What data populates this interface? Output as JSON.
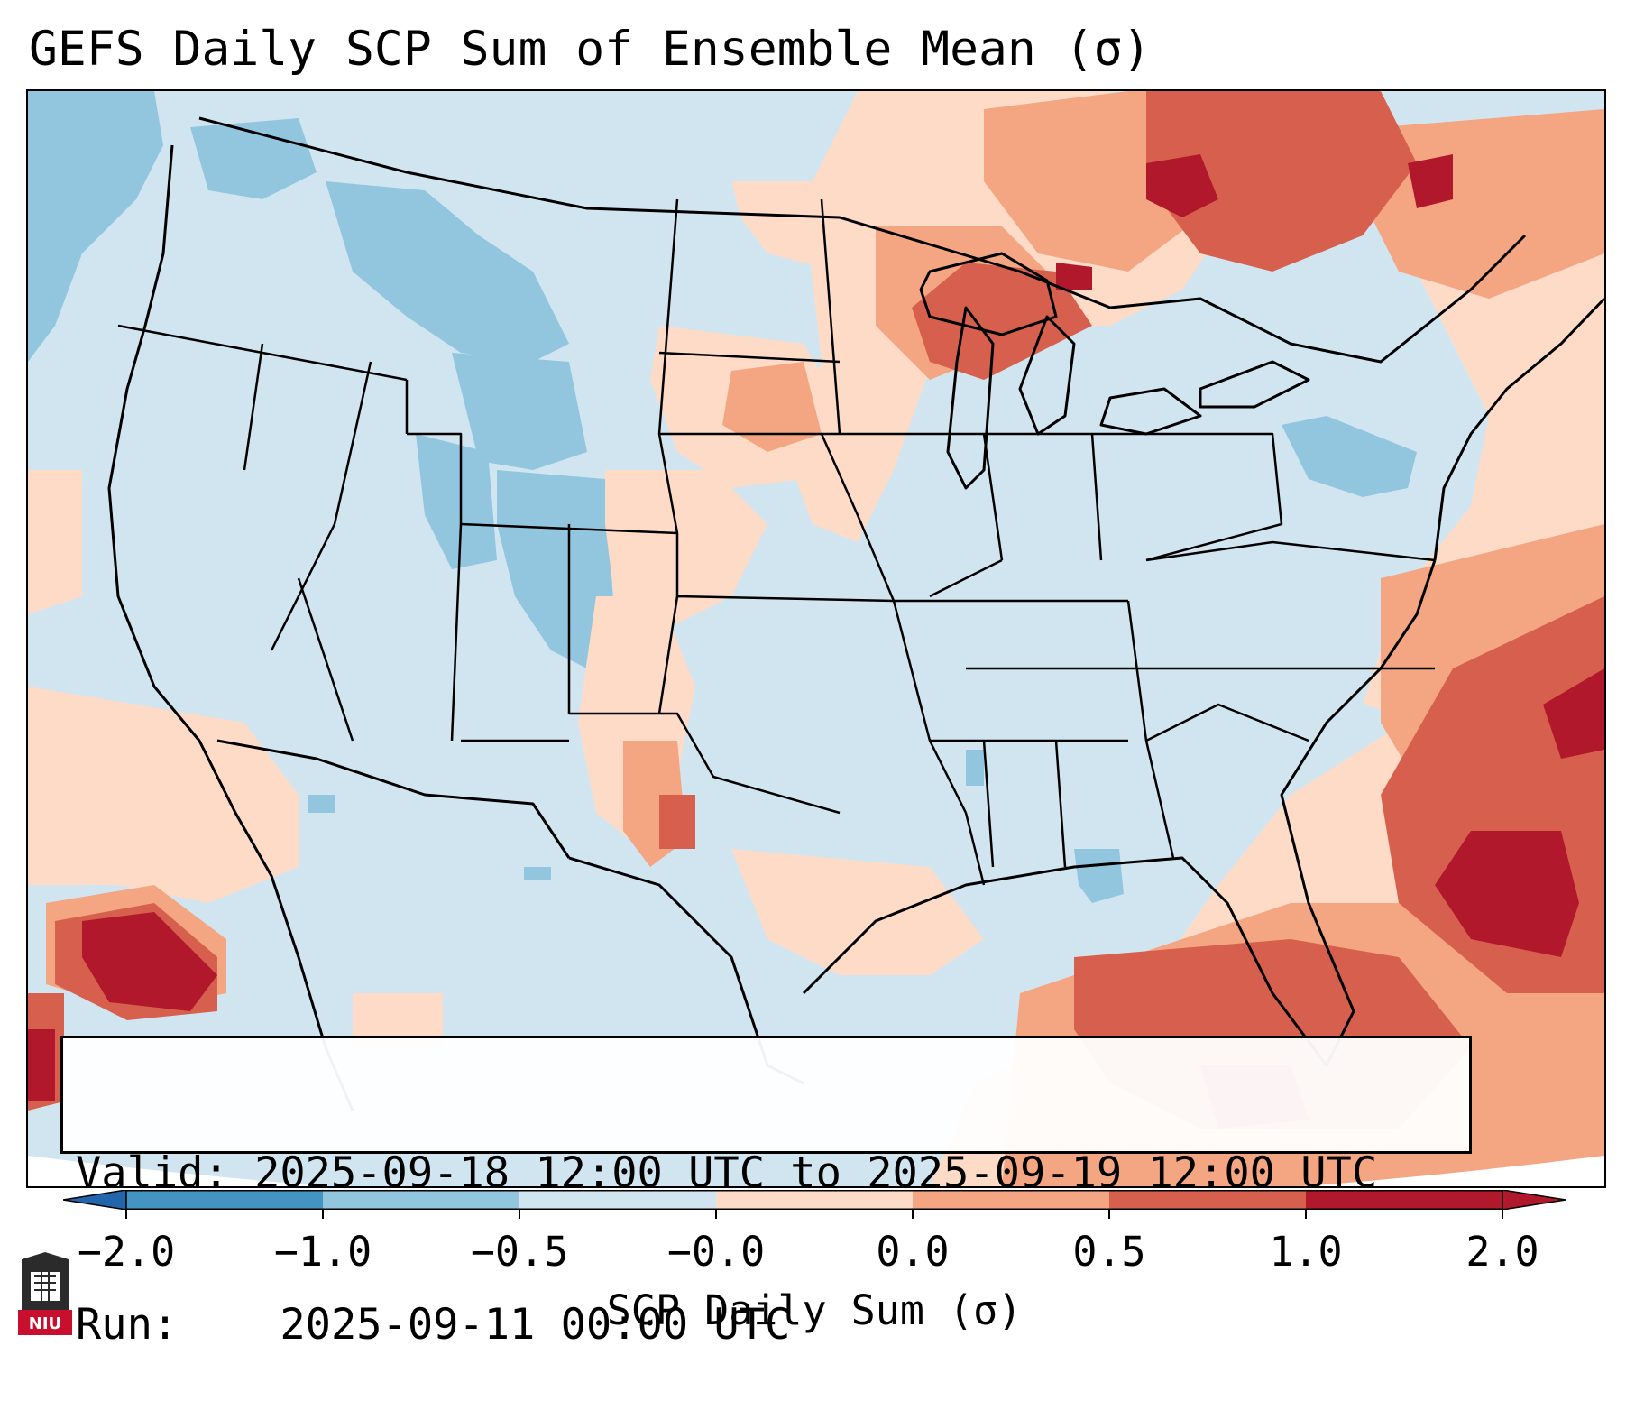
{
  "title": "GEFS Daily SCP Sum of Ensemble Mean (σ)",
  "info": {
    "valid_label": "Valid:",
    "valid_value": "2025-09-18 12:00 UTC to 2025-09-19 12:00 UTC",
    "run_label": "Run:",
    "run_value": "2025-09-11 00:00 UTC"
  },
  "colorbar": {
    "label": "SCP Daily Sum (σ)",
    "ticks": [
      "−2.0",
      "−1.0",
      "−0.5",
      "−0.0",
      "0.0",
      "0.5",
      "1.0",
      "2.0"
    ],
    "colors": [
      "#4393c3",
      "#92c5de",
      "#d1e5f0",
      "#d1e5f0",
      "#fddbc7",
      "#f4a582",
      "#d6604d",
      "#b2182b"
    ],
    "extend_low_color": "#2166ac",
    "extend_high_color": "#b2182b"
  },
  "palette": {
    "background": "#d1e5f0",
    "neg1": "#92c5de",
    "pos0": "#fddbc7",
    "pos05": "#f4a582",
    "pos1": "#d6604d",
    "pos2": "#b2182b",
    "outline": "#000000"
  },
  "logo": {
    "text": "NIU"
  }
}
